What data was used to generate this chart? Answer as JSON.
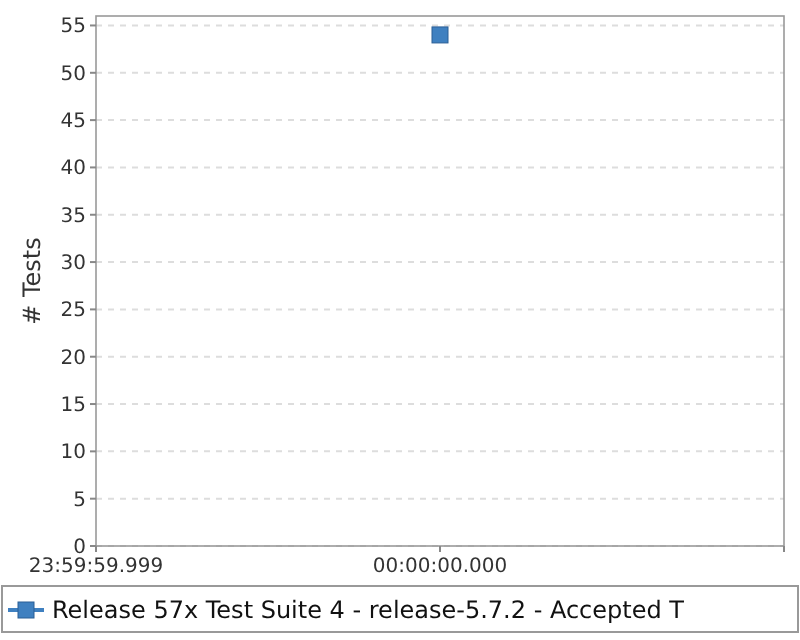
{
  "chart_data": {
    "type": "scatter",
    "ylabel": "# Tests",
    "categories": [
      "23:59:59.999",
      "00:00:00.000",
      null
    ],
    "ylim": [
      0,
      56
    ],
    "yticks": [
      0,
      5,
      10,
      15,
      20,
      25,
      30,
      35,
      40,
      45,
      50,
      55
    ],
    "series": [
      {
        "name": "Release 57x Test Suite 4 - release-5.7.2 - Accepted T",
        "color": "#3f80c0",
        "values": [
          null,
          54,
          null
        ]
      }
    ],
    "grid": "y",
    "marker": "square",
    "legend": "bottom"
  }
}
